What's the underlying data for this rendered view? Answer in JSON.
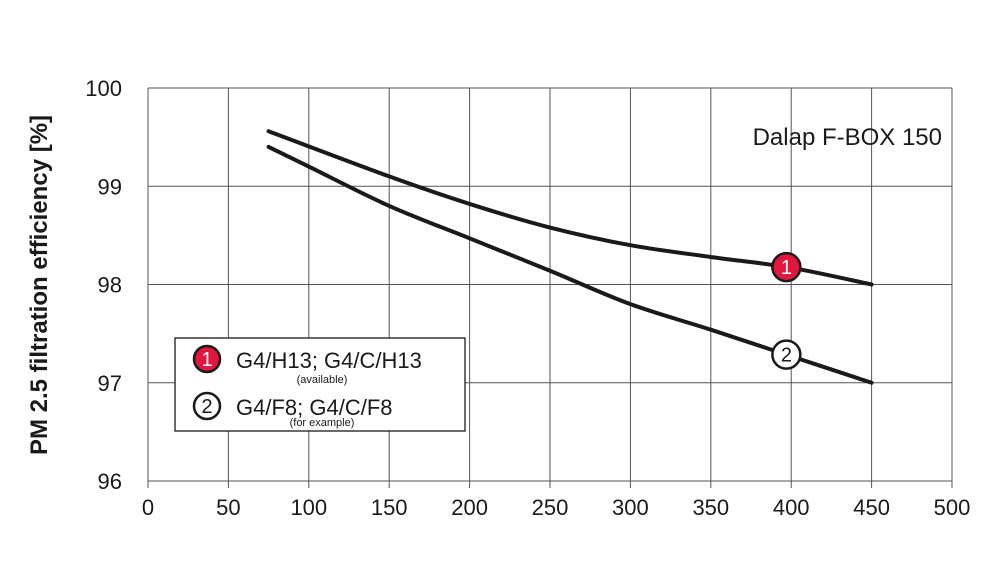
{
  "chart_data": {
    "type": "line",
    "title": "Dalap F-BOX 150",
    "xlabel": "",
    "ylabel": "PM 2.5 filtration efficiency [%]",
    "xlim": [
      0,
      500
    ],
    "ylim": [
      96,
      100
    ],
    "xticks": [
      "0",
      "50",
      "100",
      "150",
      "200",
      "250",
      "300",
      "350",
      "400",
      "450",
      "500"
    ],
    "yticks": [
      "96",
      "97",
      "98",
      "99",
      "100"
    ],
    "grid": true,
    "legend_position": "left",
    "series": [
      {
        "name": "G4/H13; G4/C/H13",
        "note": "(available)",
        "marker": "1",
        "marker_fill": "#e3173e",
        "marker_text_color": "#ffffff",
        "marker_x": 397,
        "x": [
          75,
          150,
          200,
          250,
          300,
          350,
          400,
          450
        ],
        "values": [
          99.56,
          99.1,
          98.82,
          98.58,
          98.4,
          98.28,
          98.17,
          98.0
        ]
      },
      {
        "name": "G4/F8; G4/C/F8",
        "note": "(for example)",
        "marker": "2",
        "marker_fill": "#ffffff",
        "marker_text_color": "#1a1a1a",
        "marker_x": 397,
        "x": [
          75,
          100,
          150,
          200,
          250,
          300,
          350,
          400,
          450
        ],
        "values": [
          99.4,
          99.2,
          98.8,
          98.47,
          98.14,
          97.8,
          97.54,
          97.27,
          97.0
        ]
      }
    ]
  }
}
